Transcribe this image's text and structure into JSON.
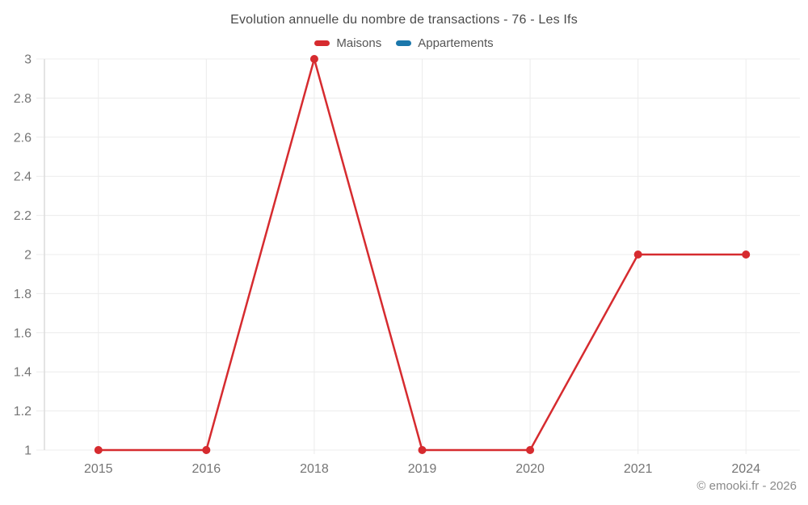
{
  "header": {
    "title": "Evolution annuelle du nombre de transactions - 76 - Les Ifs"
  },
  "legend": [
    {
      "label": "Maisons",
      "color": "#d62b2f"
    },
    {
      "label": "Appartements",
      "color": "#1b77ab"
    }
  ],
  "footer": {
    "copyright": "© emooki.fr - 2026"
  },
  "chart_data": {
    "type": "line",
    "title": "Evolution annuelle du nombre de transactions - 76 - Les Ifs",
    "categories": [
      "2015",
      "2016",
      "2018",
      "2019",
      "2020",
      "2021",
      "2024"
    ],
    "series": [
      {
        "name": "Maisons",
        "color": "#d62b2f",
        "values": [
          1,
          1,
          3,
          1,
          1,
          2,
          2
        ]
      },
      {
        "name": "Appartements",
        "color": "#1b77ab",
        "values": []
      }
    ],
    "xlabel": "",
    "ylabel": "",
    "ylim": [
      1,
      3
    ],
    "yticks": [
      1,
      1.2,
      1.4,
      1.6,
      1.8,
      2,
      2.2,
      2.4,
      2.6,
      2.8,
      3
    ],
    "grid": true,
    "legend_position": "top",
    "marker": "circle",
    "grid_color": "#ececec",
    "axis_color": "#dcdcdc",
    "tick_label_color": "#757575"
  }
}
